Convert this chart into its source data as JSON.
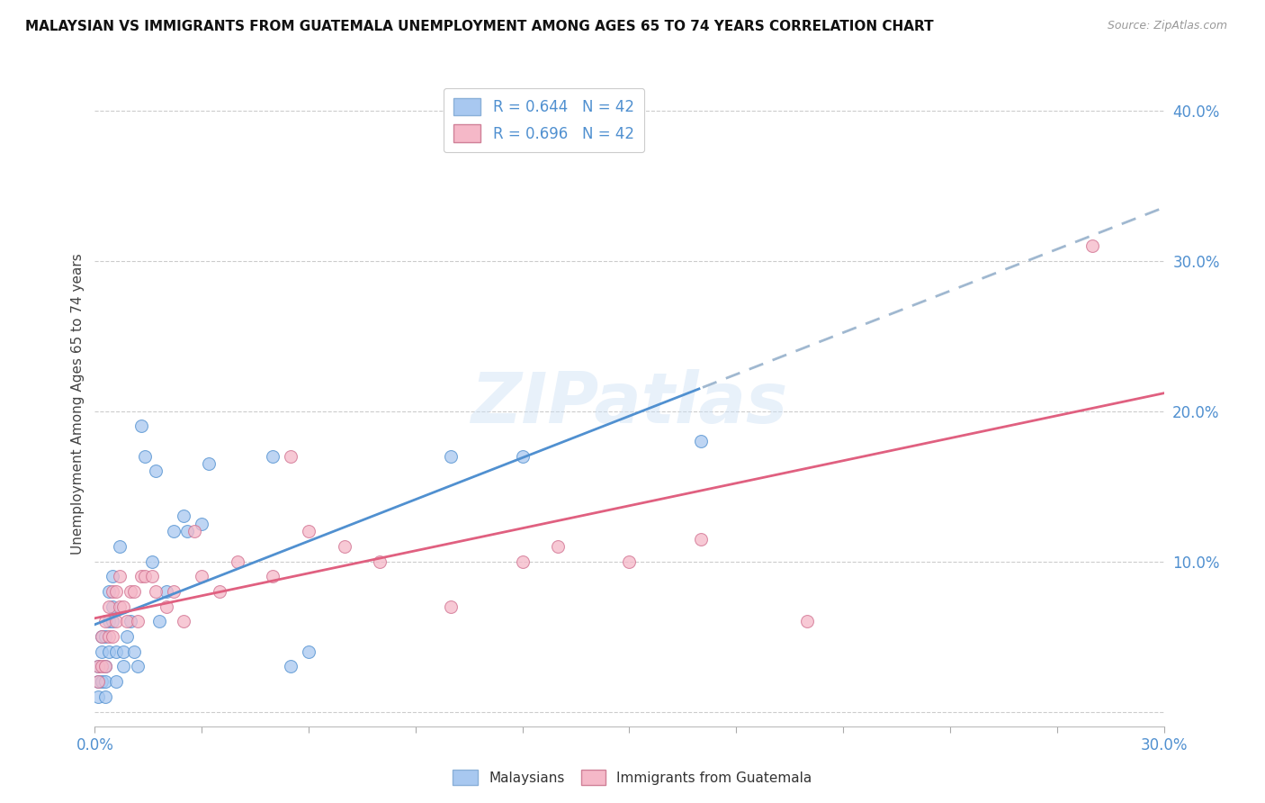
{
  "title": "MALAYSIAN VS IMMIGRANTS FROM GUATEMALA UNEMPLOYMENT AMONG AGES 65 TO 74 YEARS CORRELATION CHART",
  "source": "Source: ZipAtlas.com",
  "ylabel": "Unemployment Among Ages 65 to 74 years",
  "legend_label1": "R = 0.644   N = 42",
  "legend_label2": "R = 0.696   N = 42",
  "legend_bottom1": "Malaysians",
  "legend_bottom2": "Immigrants from Guatemala",
  "color_blue": "#a8c8f0",
  "color_pink": "#f5b8c8",
  "color_line_blue": "#5090d0",
  "color_line_pink": "#e06080",
  "watermark": "ZIPatlas",
  "malaysians_x": [
    0.001,
    0.001,
    0.001,
    0.002,
    0.002,
    0.002,
    0.003,
    0.003,
    0.003,
    0.003,
    0.004,
    0.004,
    0.004,
    0.005,
    0.005,
    0.005,
    0.006,
    0.006,
    0.007,
    0.008,
    0.008,
    0.009,
    0.01,
    0.011,
    0.012,
    0.013,
    0.014,
    0.016,
    0.017,
    0.018,
    0.02,
    0.022,
    0.025,
    0.026,
    0.03,
    0.032,
    0.05,
    0.055,
    0.06,
    0.1,
    0.12,
    0.17
  ],
  "malaysians_y": [
    0.01,
    0.02,
    0.03,
    0.02,
    0.04,
    0.05,
    0.01,
    0.02,
    0.03,
    0.05,
    0.04,
    0.06,
    0.08,
    0.06,
    0.07,
    0.09,
    0.02,
    0.04,
    0.11,
    0.03,
    0.04,
    0.05,
    0.06,
    0.04,
    0.03,
    0.19,
    0.17,
    0.1,
    0.16,
    0.06,
    0.08,
    0.12,
    0.13,
    0.12,
    0.125,
    0.165,
    0.17,
    0.03,
    0.04,
    0.17,
    0.17,
    0.18
  ],
  "guatemalans_x": [
    0.001,
    0.001,
    0.002,
    0.002,
    0.003,
    0.003,
    0.004,
    0.004,
    0.005,
    0.005,
    0.006,
    0.006,
    0.007,
    0.007,
    0.008,
    0.009,
    0.01,
    0.011,
    0.012,
    0.013,
    0.014,
    0.016,
    0.017,
    0.02,
    0.022,
    0.025,
    0.028,
    0.03,
    0.035,
    0.04,
    0.05,
    0.055,
    0.06,
    0.07,
    0.08,
    0.1,
    0.12,
    0.13,
    0.15,
    0.17,
    0.2,
    0.28
  ],
  "guatemalans_y": [
    0.02,
    0.03,
    0.03,
    0.05,
    0.03,
    0.06,
    0.05,
    0.07,
    0.05,
    0.08,
    0.06,
    0.08,
    0.07,
    0.09,
    0.07,
    0.06,
    0.08,
    0.08,
    0.06,
    0.09,
    0.09,
    0.09,
    0.08,
    0.07,
    0.08,
    0.06,
    0.12,
    0.09,
    0.08,
    0.1,
    0.09,
    0.17,
    0.12,
    0.11,
    0.1,
    0.07,
    0.1,
    0.11,
    0.1,
    0.115,
    0.06,
    0.31
  ],
  "xlim": [
    0.0,
    0.3
  ],
  "ylim": [
    -0.01,
    0.42
  ],
  "y_ticks": [
    0.0,
    0.1,
    0.2,
    0.3,
    0.4
  ],
  "y_tick_labels": [
    "",
    "10.0%",
    "20.0%",
    "30.0%",
    "40.0%"
  ],
  "x_ticks": [
    0.0,
    0.03,
    0.06,
    0.09,
    0.12,
    0.15,
    0.18,
    0.21,
    0.24,
    0.27,
    0.3
  ],
  "blue_line_x_end_solid": 0.17,
  "blue_line_x_end_dash": 0.3
}
